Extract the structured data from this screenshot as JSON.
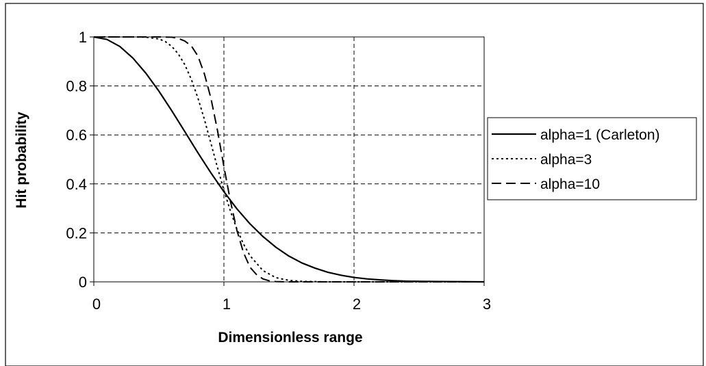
{
  "chart_data": {
    "type": "line",
    "title": "",
    "xlabel": "Dimensionless range",
    "ylabel": "Hit probability",
    "xlim": [
      0,
      3
    ],
    "ylim": [
      0,
      1
    ],
    "x_ticks": [
      "0",
      "1",
      "2",
      "3"
    ],
    "y_ticks": [
      "0",
      "0.2",
      "0.4",
      "0.6",
      "0.8",
      "1"
    ],
    "grid": true,
    "legend_position": "right",
    "series": [
      {
        "name": "alpha=1 (Carleton)",
        "line_style": "solid",
        "x": [
          0,
          0.1,
          0.2,
          0.3,
          0.4,
          0.5,
          0.6,
          0.7,
          0.8,
          0.9,
          1.0,
          1.1,
          1.2,
          1.3,
          1.4,
          1.5,
          1.6,
          1.7,
          1.8,
          1.9,
          2.0,
          2.1,
          2.2,
          2.3,
          2.4,
          2.5,
          3.0
        ],
        "y": [
          1.0,
          0.99,
          0.961,
          0.914,
          0.852,
          0.779,
          0.698,
          0.613,
          0.527,
          0.445,
          0.368,
          0.298,
          0.237,
          0.185,
          0.141,
          0.105,
          0.077,
          0.056,
          0.039,
          0.027,
          0.018,
          0.012,
          0.008,
          0.005,
          0.003,
          0.002,
          0.0
        ]
      },
      {
        "name": "alpha=3",
        "line_style": "dotted",
        "x": [
          0,
          0.1,
          0.2,
          0.3,
          0.4,
          0.5,
          0.55,
          0.6,
          0.65,
          0.7,
          0.75,
          0.8,
          0.85,
          0.9,
          0.95,
          1.0,
          1.05,
          1.1,
          1.15,
          1.2,
          1.3,
          1.4,
          1.5,
          1.6,
          1.7,
          1.8,
          3.0
        ],
        "y": [
          1.0,
          1.0,
          1.0,
          1.0,
          0.999,
          0.992,
          0.981,
          0.961,
          0.93,
          0.886,
          0.826,
          0.751,
          0.663,
          0.566,
          0.468,
          0.374,
          0.289,
          0.215,
          0.155,
          0.107,
          0.046,
          0.017,
          0.006,
          0.002,
          0.001,
          0.0,
          0.0
        ]
      },
      {
        "name": "alpha=10",
        "line_style": "dashed",
        "x": [
          0,
          0.5,
          0.6,
          0.65,
          0.7,
          0.75,
          0.8,
          0.85,
          0.9,
          0.95,
          1.0,
          1.05,
          1.1,
          1.15,
          1.2,
          1.25,
          1.3,
          1.35,
          1.4,
          1.5,
          3.0
        ],
        "y": [
          1.0,
          1.0,
          0.999,
          0.994,
          0.983,
          0.963,
          0.922,
          0.849,
          0.75,
          0.62,
          0.47,
          0.33,
          0.21,
          0.12,
          0.06,
          0.03,
          0.012,
          0.004,
          0.001,
          0.0,
          0.0
        ]
      }
    ]
  }
}
